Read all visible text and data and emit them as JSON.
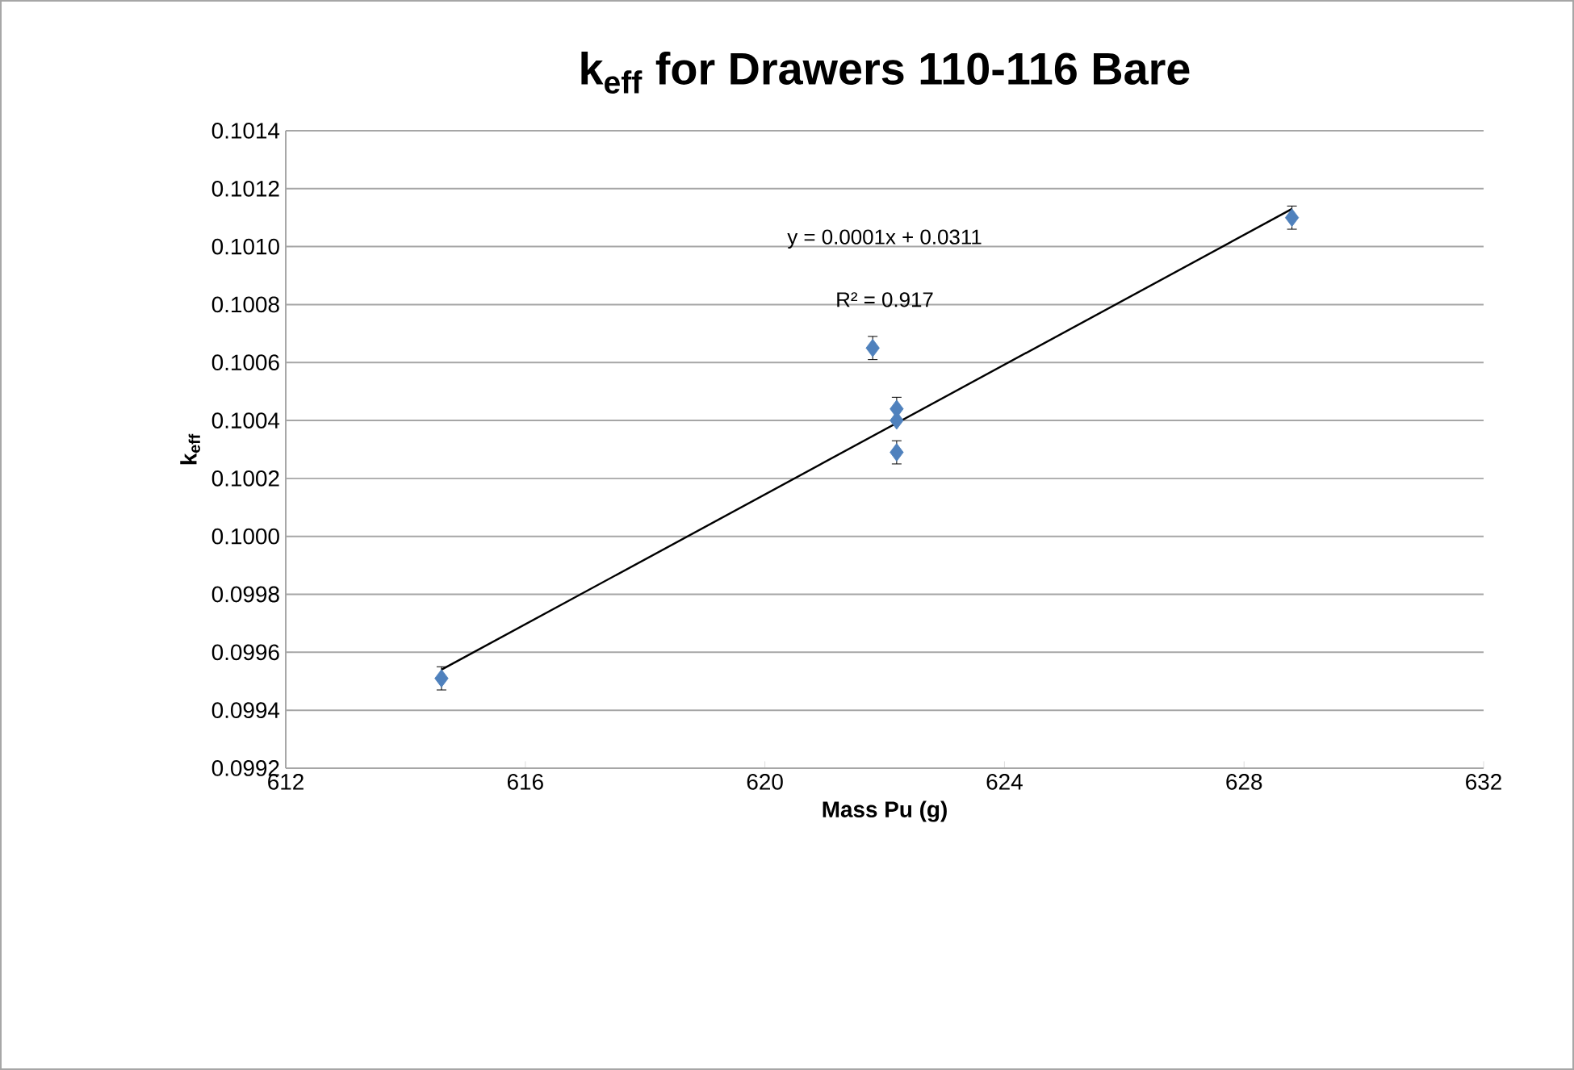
{
  "chart_data": {
    "type": "scatter",
    "title": "k$_{eff}$ for Drawers 110-116 Bare",
    "xlabel": "Mass Pu (g)",
    "ylabel": "k$_{eff}$",
    "annotations": [
      "y = 0.0001x + 0.0311",
      "R² = 0.917"
    ],
    "series": [
      {
        "color": "#4f81bd",
        "marker": "diamond",
        "x": [
          614.6,
          621.8,
          622.2,
          622.2,
          622.2,
          628.8
        ],
        "values": [
          0.09951,
          0.10065,
          0.10044,
          0.1004,
          0.10029,
          0.1011
        ],
        "errors": [
          4e-05,
          4e-05,
          4e-05,
          null,
          4e-05,
          4e-05
        ]
      },
      {
        "type": "line",
        "color": "#000000",
        "marker": "none",
        "line_style": "solid",
        "x": [
          614.6,
          628.8
        ],
        "values": [
          0.09954,
          0.10113
        ]
      }
    ],
    "xlim": [
      612,
      632
    ],
    "xticks": [
      612,
      616,
      620,
      624,
      628,
      632
    ],
    "ylim": [
      0.0992,
      0.1014
    ],
    "yticks": [
      0.0992,
      0.0994,
      0.0996,
      0.0998,
      {
        "value": 0.1,
        "label": "0.1000"
      },
      0.1002,
      0.1004,
      0.1006,
      0.1008,
      {
        "value": 0.101,
        "label": "0.1010"
      },
      0.1012,
      0.1014
    ],
    "grid": "y"
  }
}
